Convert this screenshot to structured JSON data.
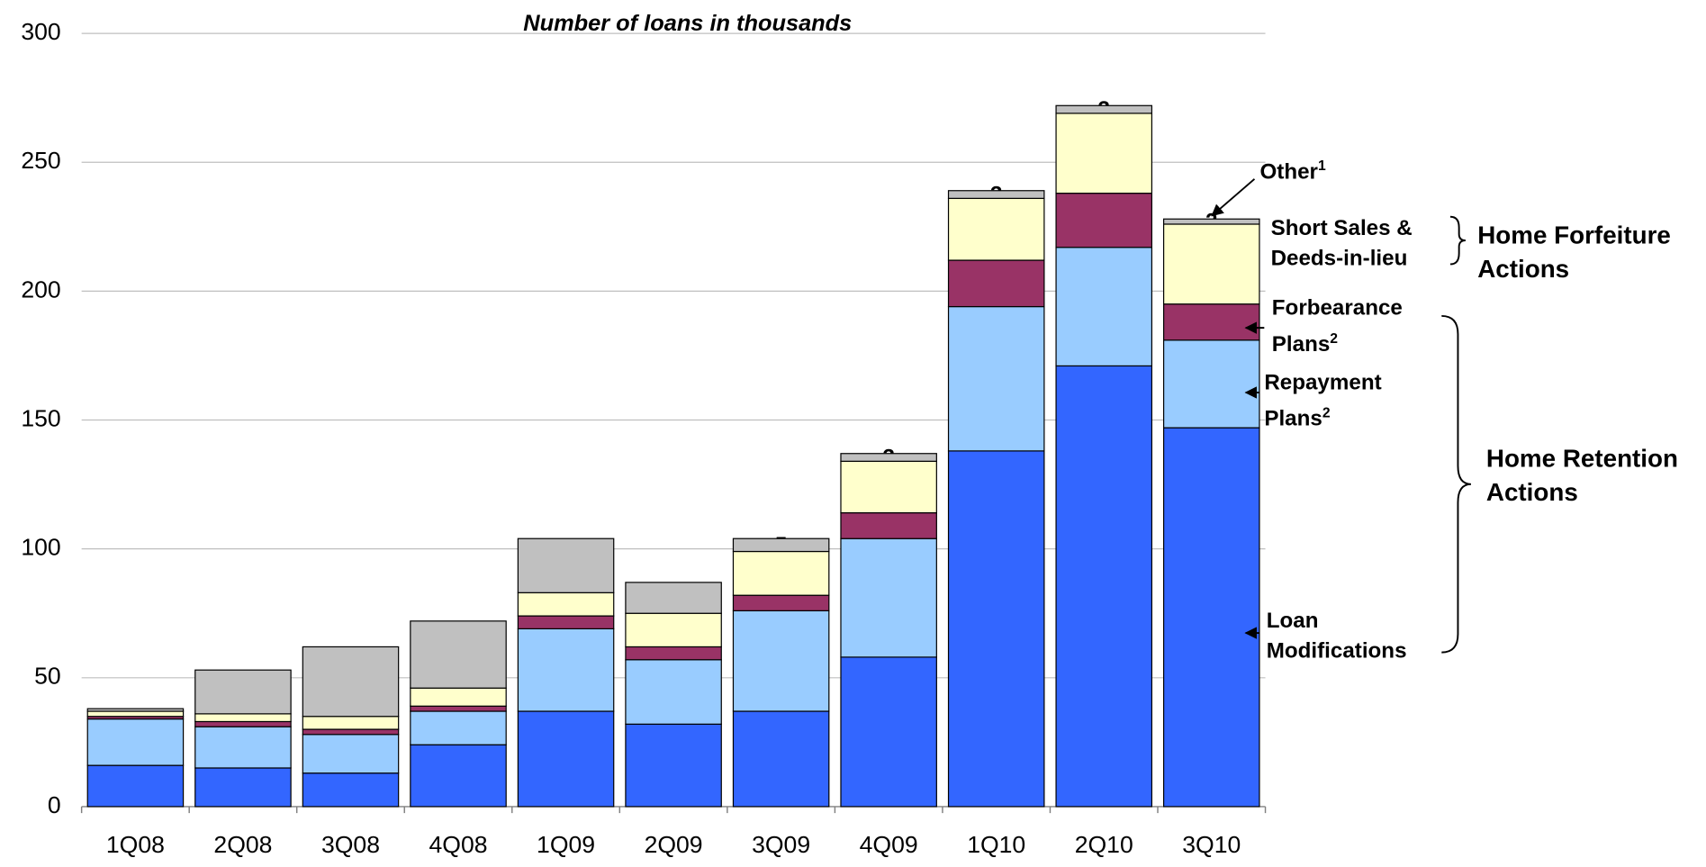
{
  "chart_data": {
    "type": "stacked_bar",
    "title": "Number of loans in thousands",
    "categories": [
      "1Q08",
      "2Q08",
      "3Q08",
      "4Q08",
      "1Q09",
      "2Q09",
      "3Q09",
      "4Q09",
      "1Q10",
      "2Q10",
      "3Q10"
    ],
    "series": [
      {
        "name": "Loan Modifications",
        "color": "#3366ff",
        "label_color": "#ffffff",
        "values": [
          16,
          15,
          13,
          24,
          37,
          32,
          37,
          58,
          138,
          171,
          147
        ],
        "value_labels": [
          "16",
          "15",
          "13",
          "24",
          "37",
          "32",
          "37",
          "58",
          "138",
          "171",
          "147"
        ]
      },
      {
        "name": "Repayment Plans",
        "note": "2",
        "color": "#99ccff",
        "label_color": "#000000",
        "values": [
          18,
          16,
          15,
          13,
          32,
          25,
          39,
          46,
          56,
          46,
          34
        ],
        "value_labels": [
          "18",
          "16",
          "15",
          "13",
          "32",
          "25",
          "39",
          "46",
          "56",
          "46",
          "34"
        ]
      },
      {
        "name": "Forbearance Plans",
        "note": "2",
        "color": "#993366",
        "label_color": "#ffffff",
        "values": [
          1,
          2,
          2,
          2,
          5,
          5,
          6,
          10,
          18,
          21,
          14
        ],
        "value_labels": [
          null,
          null,
          null,
          null,
          "5",
          "5",
          "6",
          "10",
          "18",
          "21",
          "14"
        ]
      },
      {
        "name": "Short Sales & Deeds-in-lieu",
        "color": "#ffffcc",
        "label_color": "#000000",
        "values": [
          2,
          3,
          5,
          7,
          9,
          13,
          17,
          20,
          24,
          31,
          31
        ],
        "value_labels": [
          null,
          "3",
          "5",
          "7",
          "9",
          "13",
          "17",
          "20",
          "24",
          "31",
          "31"
        ]
      },
      {
        "name": "Other",
        "note": "1",
        "color": "#c0c0c0",
        "label_color": "#000000",
        "values": [
          1,
          17,
          27,
          26,
          21,
          12,
          5,
          3,
          3,
          3,
          2
        ],
        "value_labels": [
          null,
          "17",
          "27",
          "26",
          "21",
          "12",
          "5",
          "3",
          "3",
          "3",
          "2"
        ]
      }
    ],
    "annotations": [
      {
        "text": "Home Forfeiture Actions"
      },
      {
        "text": "Home Retention Actions"
      }
    ],
    "ylim": [
      0,
      300
    ],
    "yticks": [
      0,
      50,
      100,
      150,
      200,
      250,
      300
    ],
    "grid": true
  }
}
